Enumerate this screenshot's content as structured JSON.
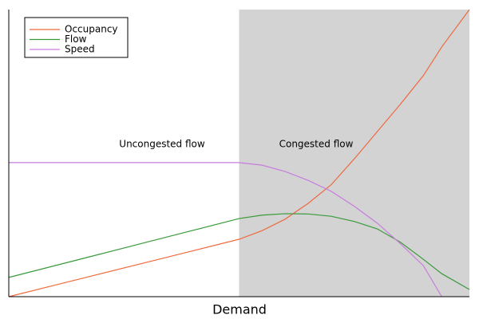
{
  "chart_data": {
    "type": "line",
    "xlabel": "Demand",
    "x": [
      0,
      1,
      2,
      3,
      4,
      5,
      5.5,
      6,
      6.5,
      7,
      7.5,
      8,
      8.5,
      9,
      9.4,
      10
    ],
    "series": [
      {
        "name": "Occupancy",
        "color": "#ee6a3f",
        "values": [
          0,
          0.4,
          0.8,
          1.2,
          1.6,
          2.0,
          2.3,
          2.7,
          3.25,
          3.9,
          4.8,
          5.75,
          6.7,
          7.7,
          8.7,
          10
        ]
      },
      {
        "name": "Flow",
        "color": "#3a9a3a",
        "values": [
          0.67,
          1.08,
          1.49,
          1.9,
          2.31,
          2.72,
          2.84,
          2.89,
          2.88,
          2.8,
          2.62,
          2.36,
          1.9,
          1.3,
          0.8,
          0.25
        ]
      },
      {
        "name": "Speed",
        "color": "#c77cdd",
        "values": [
          4.67,
          4.67,
          4.67,
          4.67,
          4.67,
          4.67,
          4.58,
          4.36,
          4.05,
          3.67,
          3.15,
          2.56,
          1.85,
          1.08,
          0,
          null
        ]
      }
    ],
    "shaded_xrange": [
      5,
      10
    ],
    "annotations": [
      "Uncongested flow",
      "Congested flow"
    ],
    "xlim": [
      0,
      10
    ],
    "ylim": [
      0,
      10
    ],
    "legend": "upper left"
  }
}
